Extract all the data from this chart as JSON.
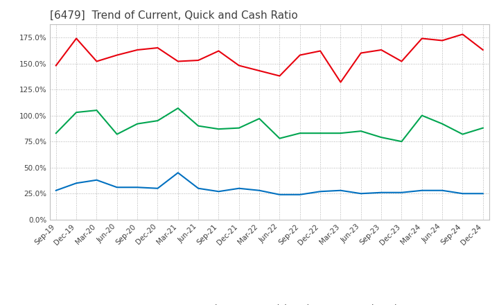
{
  "title": "[6479]  Trend of Current, Quick and Cash Ratio",
  "x_labels": [
    "Sep-19",
    "Dec-19",
    "Mar-20",
    "Jun-20",
    "Sep-20",
    "Dec-20",
    "Mar-21",
    "Jun-21",
    "Sep-21",
    "Dec-21",
    "Mar-22",
    "Jun-22",
    "Sep-22",
    "Dec-22",
    "Mar-23",
    "Jun-23",
    "Sep-23",
    "Dec-23",
    "Mar-24",
    "Jun-24",
    "Sep-24",
    "Dec-24"
  ],
  "current_ratio": [
    148,
    174,
    152,
    158,
    163,
    165,
    152,
    153,
    162,
    148,
    143,
    138,
    158,
    162,
    132,
    160,
    163,
    152,
    174,
    172,
    178,
    163
  ],
  "quick_ratio": [
    83,
    103,
    105,
    82,
    92,
    95,
    107,
    90,
    87,
    88,
    97,
    78,
    83,
    83,
    83,
    85,
    79,
    75,
    100,
    92,
    82,
    88
  ],
  "cash_ratio": [
    28,
    35,
    38,
    31,
    31,
    30,
    45,
    30,
    27,
    30,
    28,
    24,
    24,
    27,
    28,
    25,
    26,
    26,
    28,
    28,
    25,
    25
  ],
  "current_color": "#e8000d",
  "quick_color": "#00a550",
  "cash_color": "#0070c0",
  "ylim": [
    0,
    187.5
  ],
  "yticks": [
    0,
    25,
    50,
    75,
    100,
    125,
    150,
    175
  ],
  "background_color": "#ffffff",
  "grid_color": "#b0b0b0",
  "title_color": "#404040",
  "title_fontsize": 11,
  "tick_fontsize": 7.5,
  "legend_fontsize": 9
}
